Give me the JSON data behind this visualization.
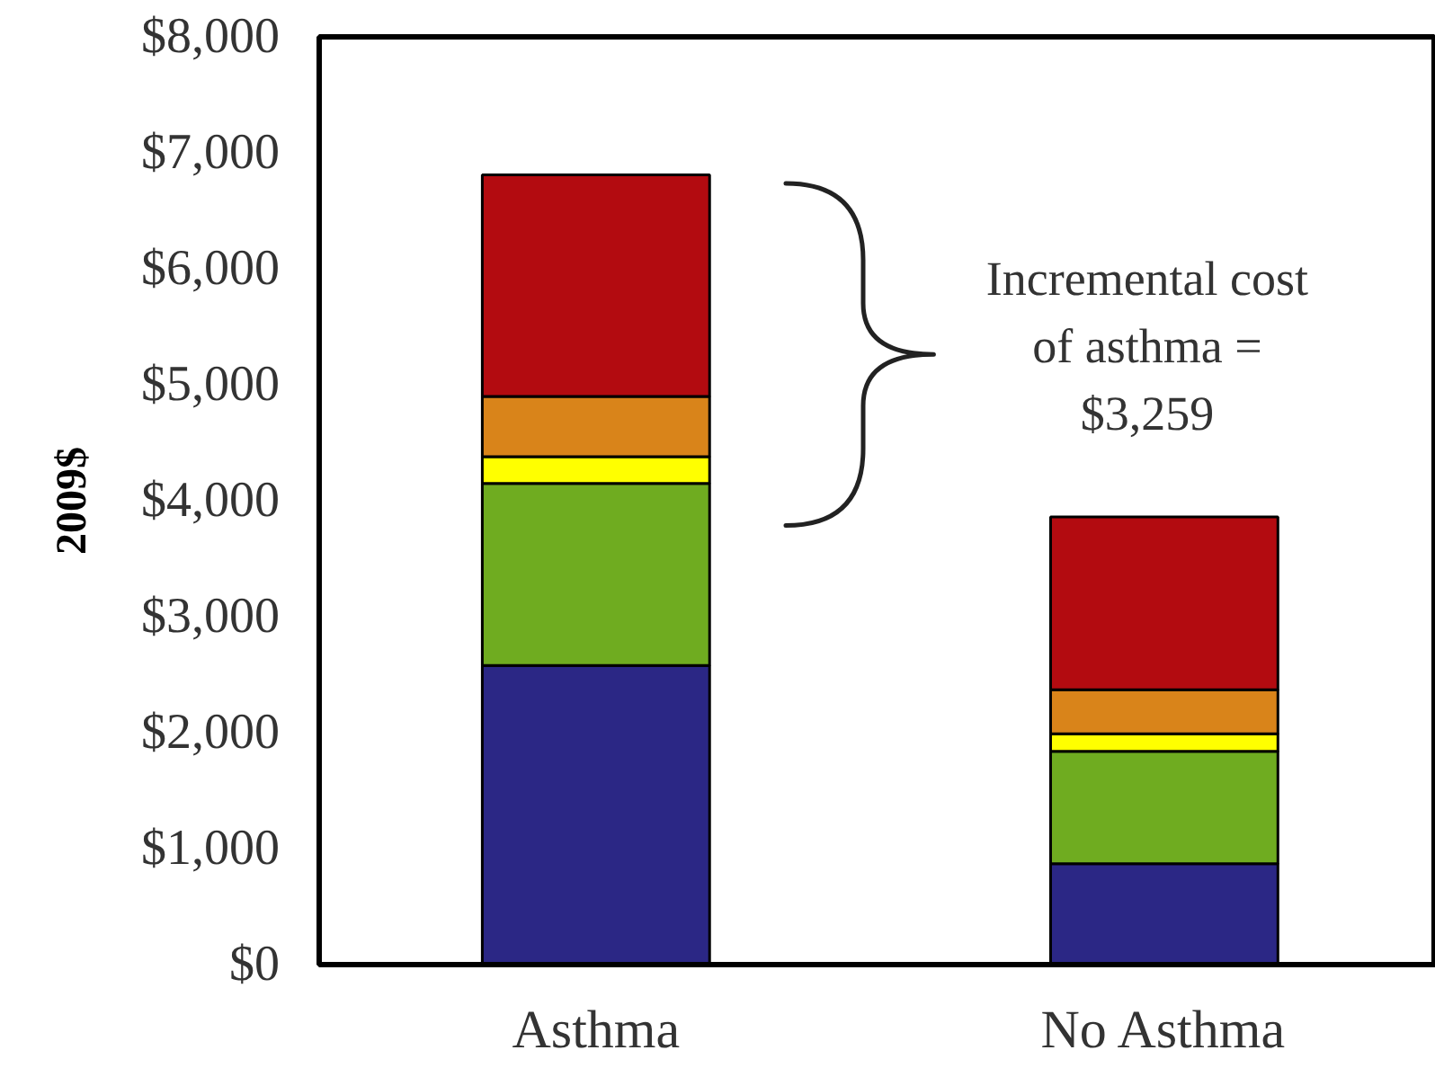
{
  "chart_data": {
    "type": "bar",
    "stacked": true,
    "ylabel": "2009$",
    "categories": [
      "Asthma",
      "No Asthma"
    ],
    "series": [
      {
        "color": "#2b2785",
        "values": [
          2580,
          870
        ]
      },
      {
        "color": "#6fac20",
        "values": [
          1570,
          970
        ]
      },
      {
        "color": "#ffff00",
        "values": [
          230,
          150
        ]
      },
      {
        "color": "#d9841a",
        "values": [
          520,
          380
        ]
      },
      {
        "color": "#b30b10",
        "values": [
          1910,
          1490
        ]
      }
    ],
    "ylim": [
      0,
      8000
    ],
    "yticks": [
      {
        "value": 0,
        "label": "$0"
      },
      {
        "value": 1000,
        "label": "$1,000"
      },
      {
        "value": 2000,
        "label": "$2,000"
      },
      {
        "value": 3000,
        "label": "$3,000"
      },
      {
        "value": 4000,
        "label": "$4,000"
      },
      {
        "value": 5000,
        "label": "$5,000"
      },
      {
        "value": 6000,
        "label": "$6,000"
      },
      {
        "value": 7000,
        "label": "$7,000"
      },
      {
        "value": 8000,
        "label": "$8,000"
      }
    ],
    "annotations": [
      "Incremental cost\nof asthma =\n$3,259"
    ]
  }
}
